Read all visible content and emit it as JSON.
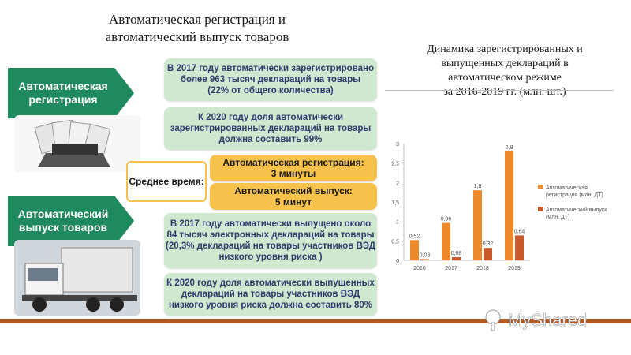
{
  "page": {
    "title_line1": "Автоматическая регистрация и",
    "title_line2": "автоматический выпуск товаров",
    "chart_title_line1": "Динамика зарегистрированных и",
    "chart_title_line2": "выпущенных деклараций в",
    "chart_title_line3": "автоматическом режиме",
    "chart_title_line4": "за 2016-2019 гг. (млн. шт.)"
  },
  "left": {
    "registration_label_line1": "Автоматическая",
    "registration_label_line2": "регистрация",
    "release_label_line1": "Автоматический",
    "release_label_line2": "выпуск товаров"
  },
  "boxes": {
    "b1_line1": "В 2017 году автоматически зарегистрировано",
    "b1_line2": "более 963 тысяч деклараций на товары",
    "b1_line3": "(22% от общего количества)",
    "b2_line1": "К 2020 году доля автоматически",
    "b2_line2": "зарегистрированных деклараций на товары",
    "b2_line3": "должна составить 99%",
    "avg_time": "Среднее время:",
    "auto_reg_line1": "Автоматическая регистрация:",
    "auto_reg_line2": "3 минуты",
    "auto_rel_line1": "Автоматический выпуск:",
    "auto_rel_line2": "5 минут",
    "b3_line1": "В 2017 году автоматически выпущено около",
    "b3_line2": "84 тысяч электронных деклараций на товары",
    "b3_line3": "(20,3% деклараций на товары участников ВЭД",
    "b3_line4": "низкого уровня риска )",
    "b4_line1": "К 2020 году доля автоматически выпущенных",
    "b4_line2": "деклараций на товары участников ВЭД",
    "b4_line3": "низкого уровня риска должна составить 80%"
  },
  "colors": {
    "green_arrow": "#1e8a5e",
    "green_box": "#cfe8cf",
    "orange": "#f7c24b",
    "bar_series1": "#ee8a2b",
    "bar_series2": "#c9582a",
    "band": "#b35a22"
  },
  "chart_data": {
    "type": "bar",
    "categories": [
      "2016",
      "2017",
      "2018",
      "2019"
    ],
    "series": [
      {
        "name": "Автоматическая регистрация (млн. ДТ)",
        "values": [
          0.52,
          0.96,
          1.8,
          2.8
        ],
        "labels": [
          "0,52",
          "0,96",
          "1,8",
          "2,8"
        ]
      },
      {
        "name": "Автоматический выпуск (млн. ДТ)",
        "values": [
          0.03,
          0.08,
          0.32,
          0.64
        ],
        "labels": [
          "0,03",
          "0,08",
          "0,32",
          "0,64"
        ]
      }
    ],
    "yticks": [
      0,
      0.5,
      1,
      1.5,
      2,
      2.5,
      3
    ],
    "ytick_labels": [
      "0",
      "0,5",
      "1",
      "1,5",
      "2",
      "2,5",
      "3"
    ],
    "ylim": [
      0,
      3
    ],
    "grid": false,
    "legend": "right",
    "legend_series1_line1": "Автоматическая",
    "legend_series1_line2": "регистрация (млн. ДТ)",
    "legend_series2_line1": "Автоматический выпуск",
    "legend_series2_line2": "(млн. ДТ)"
  },
  "watermark": {
    "text": "MyShared",
    "icon": "tree-icon"
  }
}
